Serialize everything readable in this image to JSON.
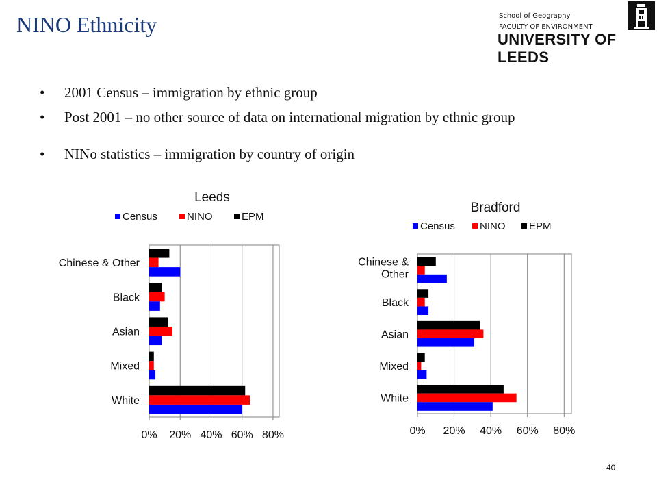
{
  "slide": {
    "title": "NINO Ethnicity",
    "page_number": "40"
  },
  "logo": {
    "line1": "School of Geography",
    "line2": "FACULTY OF ENVIRONMENT",
    "line3": "UNIVERSITY OF LEEDS",
    "icon": "university-tower-icon"
  },
  "bullets": [
    "2001 Census – immigration by ethnic group",
    "Post 2001 – no other source of data on international migration by ethnic group",
    "NINo statistics – immigration by country of origin"
  ],
  "bullet_glyph": "•",
  "colors": {
    "census": "#0000ff",
    "nino": "#ff0000",
    "epm": "#000000",
    "title": "#1a3a7a"
  },
  "chart_data": [
    {
      "type": "bar",
      "orientation": "horizontal",
      "title": "Leeds",
      "categories": [
        "Chinese & Other",
        "Black",
        "Asian",
        "Mixed",
        "White"
      ],
      "series": [
        {
          "name": "Census",
          "values": [
            20,
            7,
            8,
            4,
            60
          ]
        },
        {
          "name": "NINO",
          "values": [
            6,
            10,
            15,
            3,
            65
          ]
        },
        {
          "name": "EPM",
          "values": [
            13,
            8,
            12,
            3,
            62
          ]
        }
      ],
      "xlim": [
        0,
        80
      ],
      "xticks": [
        "0%",
        "20%",
        "40%",
        "60%",
        "80%"
      ],
      "grid": true,
      "legend": "top"
    },
    {
      "type": "bar",
      "orientation": "horizontal",
      "title": "Bradford",
      "categories": [
        "Chinese & Other",
        "Black",
        "Asian",
        "Mixed",
        "White"
      ],
      "series": [
        {
          "name": "Census",
          "values": [
            16,
            6,
            31,
            5,
            41
          ]
        },
        {
          "name": "NINO",
          "values": [
            4,
            4,
            36,
            2,
            54
          ]
        },
        {
          "name": "EPM",
          "values": [
            10,
            6,
            34,
            4,
            47
          ]
        }
      ],
      "xlim": [
        0,
        80
      ],
      "xticks": [
        "0%",
        "20%",
        "40%",
        "60%",
        "80%"
      ],
      "grid": true,
      "legend": "top"
    }
  ]
}
